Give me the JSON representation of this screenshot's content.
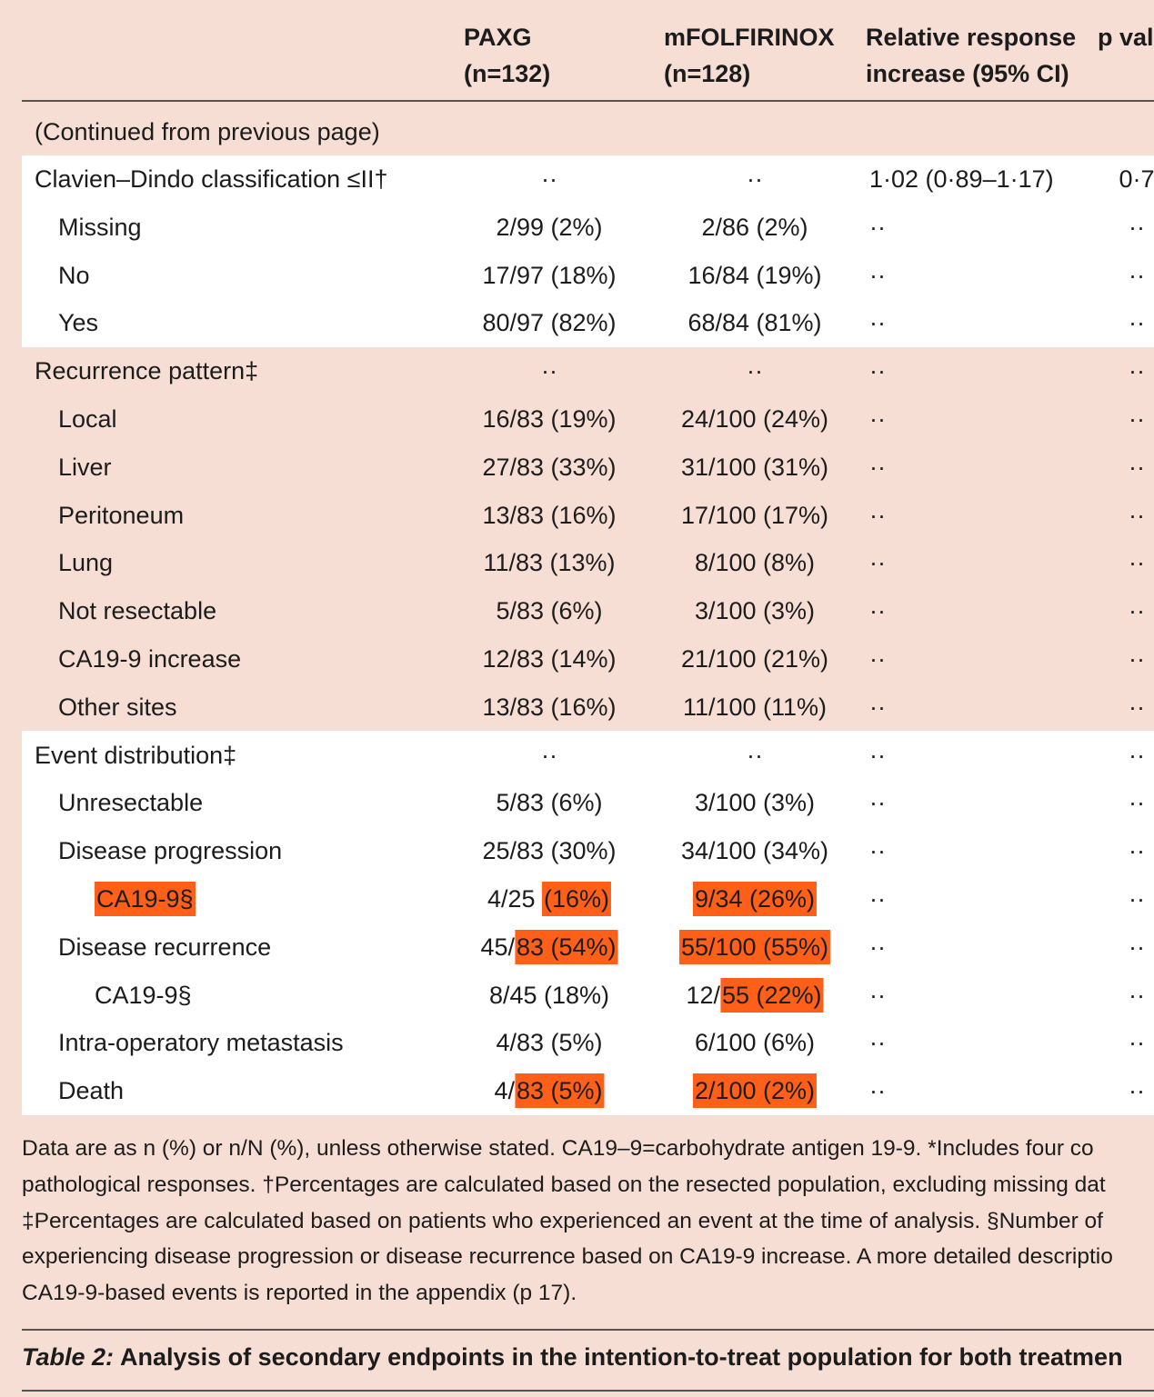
{
  "header": {
    "columns": [
      [
        "PAXG",
        "(n=132)"
      ],
      [
        "mFOLFIRINOX",
        "(n=128)"
      ],
      [
        "Relative response",
        "increase (95% CI)"
      ],
      [
        "p val"
      ]
    ]
  },
  "table": {
    "continued": "(Continued from previous page)",
    "sections": [
      {
        "label": "Clavien–Dindo classification ≤II†",
        "cells": [
          "··",
          "··",
          "1·02 (0·89–1·17)",
          "0·7"
        ],
        "items": [
          {
            "label": "Missing",
            "cells": [
              "2/99 (2%)",
              "2/86 (2%)",
              "··",
              "··"
            ]
          },
          {
            "label": "No",
            "cells": [
              "17/97 (18%)",
              "16/84 (19%)",
              "··",
              "··"
            ]
          },
          {
            "label": "Yes",
            "cells": [
              "80/97 (82%)",
              "68/84 (81%)",
              "··",
              "··"
            ]
          }
        ]
      },
      {
        "label": "Recurrence pattern‡",
        "cells": [
          "··",
          "··",
          "··",
          "··"
        ],
        "items": [
          {
            "label": "Local",
            "cells": [
              "16/83 (19%)",
              "24/100 (24%)",
              "··",
              "··"
            ]
          },
          {
            "label": "Liver",
            "cells": [
              "27/83 (33%)",
              "31/100 (31%)",
              "··",
              "··"
            ]
          },
          {
            "label": "Peritoneum",
            "cells": [
              "13/83 (16%)",
              "17/100 (17%)",
              "··",
              "··"
            ]
          },
          {
            "label": "Lung",
            "cells": [
              "11/83 (13%)",
              "8/100 (8%)",
              "··",
              "··"
            ]
          },
          {
            "label": "Not resectable",
            "cells": [
              "5/83 (6%)",
              "3/100 (3%)",
              "··",
              "··"
            ]
          },
          {
            "label": "CA19-9 increase",
            "cells": [
              "12/83 (14%)",
              "21/100 (21%)",
              "··",
              "··"
            ]
          },
          {
            "label": "Other sites",
            "cells": [
              "13/83 (16%)",
              "11/100 (11%)",
              "··",
              "··"
            ]
          }
        ]
      },
      {
        "label": "Event distribution‡",
        "cells": [
          "··",
          "··",
          "··",
          "··"
        ],
        "items": [
          {
            "label": "Unresectable",
            "cells": [
              "5/83 (6%)",
              "3/100 (3%)",
              "··",
              "··"
            ]
          },
          {
            "label": "Disease progression",
            "cells": [
              "25/83 (30%)",
              "34/100 (34%)",
              "··",
              "··"
            ],
            "items": [
              {
                "label": {
                  "marked": "CA19-9§"
                },
                "cells": [
                  {
                    "plain": "4/25 ",
                    "marked": "(16%)"
                  },
                  {
                    "marked": "9/34 (26%)"
                  },
                  "··",
                  "··"
                ]
              }
            ]
          },
          {
            "label": "Disease recurrence",
            "cells": [
              {
                "plain": "45/",
                "marked": "83 (54%)"
              },
              {
                "marked": "55/100 (55%)"
              },
              "··",
              "··"
            ],
            "items": [
              {
                "label": "CA19-9§",
                "cells": [
                  "8/45 (18%)",
                  {
                    "plain": "12/",
                    "marked": "55 (22%)"
                  },
                  "··",
                  "··"
                ]
              }
            ]
          },
          {
            "label": "Intra-operatory metastasis",
            "cells": [
              "4/83 (5%)",
              "6/100 (6%)",
              "··",
              "··"
            ]
          },
          {
            "label": "Death",
            "cells": [
              {
                "plain": "4/",
                "marked": "83 (5%)"
              },
              {
                "marked": "2/100 (2%)"
              },
              "··",
              "··"
            ]
          }
        ]
      }
    ]
  },
  "footnote": [
    "Data are as n (%) or n/N (%), unless otherwise stated. CA19–9=carbohydrate antigen 19-9. *Includes four co",
    "pathological responses. †Percentages are calculated based on the resected population, excluding missing dat",
    "‡Percentages are calculated based on patients who experienced an event at the time of analysis. §Number of",
    "experiencing disease progression or disease recurrence based on CA19-9 increase. A more detailed descriptio",
    "CA19-9-based events is reported in the appendix (p 17)."
  ],
  "caption": {
    "label": "Table 2:",
    "text": "Analysis of secondary endpoints in the intention-to-treat population for both treatmen"
  }
}
